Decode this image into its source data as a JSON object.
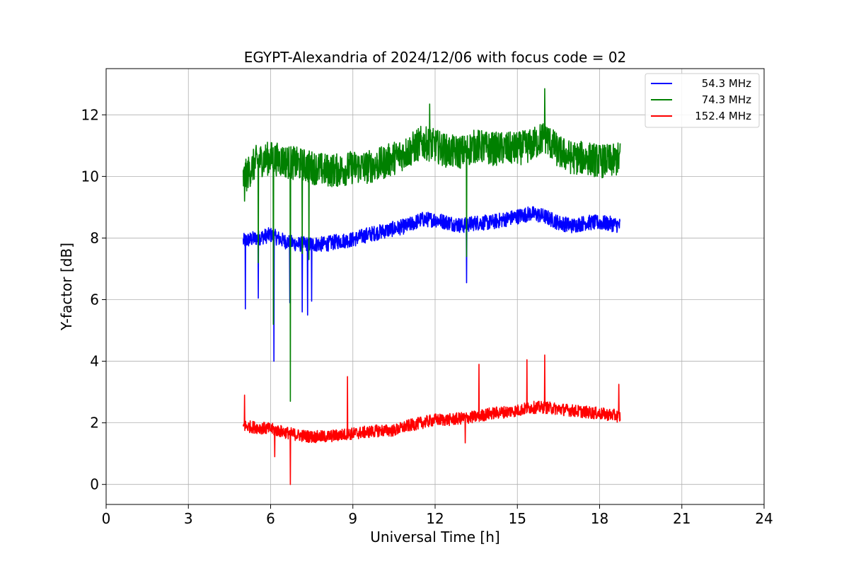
{
  "chart_data": {
    "type": "line",
    "title": "EGYPT-Alexandria of 2024/12/06 with focus code = 02",
    "xlabel": "Universal Time [h]",
    "ylabel": "Y-factor [dB]",
    "xlim": [
      0,
      24
    ],
    "ylim": [
      -0.65,
      13.5
    ],
    "xticks": [
      0,
      3,
      6,
      9,
      12,
      15,
      18,
      21,
      24
    ],
    "yticks": [
      0,
      2,
      4,
      6,
      8,
      10,
      12
    ],
    "grid": true,
    "legend_position": "top-right",
    "series": [
      {
        "name": "54.3 MHz",
        "color": "#0000ff",
        "x": [
          5.0,
          5.5,
          6.0,
          6.5,
          7.0,
          7.5,
          8.0,
          8.5,
          9.0,
          9.5,
          10.0,
          10.5,
          11.0,
          11.5,
          12.0,
          12.5,
          13.0,
          13.5,
          14.0,
          14.5,
          15.0,
          15.5,
          16.0,
          16.5,
          17.0,
          17.5,
          18.0,
          18.5,
          18.75
        ],
        "values": [
          7.9,
          8.0,
          8.1,
          7.9,
          7.8,
          7.8,
          7.8,
          7.9,
          7.95,
          8.1,
          8.2,
          8.3,
          8.4,
          8.6,
          8.6,
          8.5,
          8.4,
          8.5,
          8.5,
          8.6,
          8.7,
          8.8,
          8.7,
          8.5,
          8.4,
          8.5,
          8.5,
          8.45,
          8.4
        ],
        "noise": 0.25,
        "spikes": [
          {
            "x": 5.08,
            "y": 5.7
          },
          {
            "x": 5.55,
            "y": 6.05
          },
          {
            "x": 6.12,
            "y": 4.0
          },
          {
            "x": 6.7,
            "y": 5.9
          },
          {
            "x": 7.15,
            "y": 5.6
          },
          {
            "x": 7.35,
            "y": 5.5
          },
          {
            "x": 7.5,
            "y": 5.95
          },
          {
            "x": 13.15,
            "y": 6.55
          }
        ]
      },
      {
        "name": "74.3 MHz",
        "color": "#008000",
        "x": [
          5.0,
          5.5,
          6.0,
          6.5,
          7.0,
          7.5,
          8.0,
          8.5,
          9.0,
          9.5,
          10.0,
          10.5,
          11.0,
          11.5,
          12.0,
          12.5,
          13.0,
          13.5,
          14.0,
          14.5,
          15.0,
          15.5,
          16.0,
          16.5,
          17.0,
          17.5,
          18.0,
          18.5,
          18.75
        ],
        "values": [
          9.9,
          10.5,
          10.6,
          10.5,
          10.4,
          10.3,
          10.2,
          10.2,
          10.3,
          10.3,
          10.4,
          10.6,
          10.8,
          11.1,
          11.0,
          10.8,
          10.8,
          11.0,
          10.9,
          10.9,
          10.9,
          11.0,
          11.3,
          10.8,
          10.6,
          10.6,
          10.5,
          10.5,
          10.6
        ],
        "noise": 0.55,
        "spikes": [
          {
            "x": 5.05,
            "y": 9.2
          },
          {
            "x": 5.55,
            "y": 7.2
          },
          {
            "x": 6.1,
            "y": 5.2
          },
          {
            "x": 6.72,
            "y": 2.7
          },
          {
            "x": 7.15,
            "y": 7.5
          },
          {
            "x": 7.4,
            "y": 7.3
          },
          {
            "x": 13.15,
            "y": 7.4
          },
          {
            "x": 11.8,
            "y": 12.35
          },
          {
            "x": 16.0,
            "y": 12.85
          }
        ]
      },
      {
        "name": "152.4 MHz",
        "color": "#ff0000",
        "x": [
          5.0,
          5.5,
          6.0,
          6.5,
          7.0,
          7.5,
          8.0,
          8.5,
          9.0,
          9.5,
          10.0,
          10.5,
          11.0,
          11.5,
          12.0,
          12.5,
          13.0,
          13.5,
          14.0,
          14.5,
          15.0,
          15.5,
          16.0,
          16.5,
          17.0,
          17.5,
          18.0,
          18.5,
          18.75
        ],
        "values": [
          1.9,
          1.85,
          1.8,
          1.7,
          1.6,
          1.55,
          1.55,
          1.6,
          1.65,
          1.7,
          1.75,
          1.75,
          1.9,
          2.0,
          2.1,
          2.1,
          2.15,
          2.2,
          2.3,
          2.35,
          2.4,
          2.5,
          2.5,
          2.45,
          2.4,
          2.35,
          2.3,
          2.25,
          2.2
        ],
        "noise": 0.2,
        "spikes": [
          {
            "x": 5.05,
            "y": 2.9
          },
          {
            "x": 6.15,
            "y": 0.9
          },
          {
            "x": 6.72,
            "y": 0.0
          },
          {
            "x": 8.8,
            "y": 3.5
          },
          {
            "x": 13.1,
            "y": 1.35
          },
          {
            "x": 13.6,
            "y": 3.9
          },
          {
            "x": 15.35,
            "y": 4.05
          },
          {
            "x": 16.0,
            "y": 4.2
          },
          {
            "x": 18.7,
            "y": 3.25
          }
        ]
      }
    ]
  }
}
